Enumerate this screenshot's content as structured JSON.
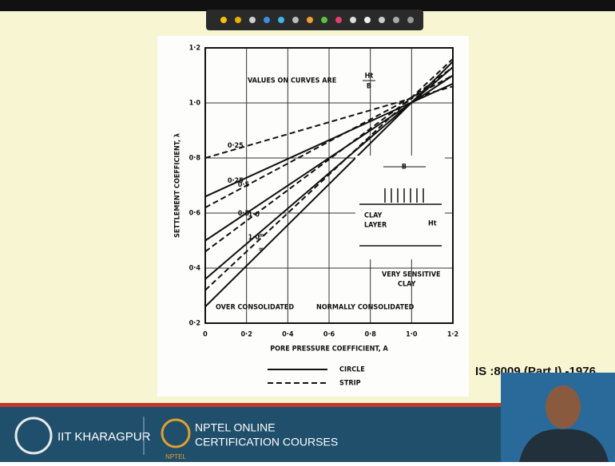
{
  "chart_data": {
    "type": "line",
    "note_text": "VALUES ON CURVES ARE",
    "note_fraction": {
      "numerator": "Ht",
      "denominator": "B"
    },
    "ylabel": "SETTLEMENT COEFFICIENT, λ",
    "xlabel": "PORE PRESSURE COEFFICIENT, A",
    "xlim": [
      0,
      1.2
    ],
    "ylim": [
      0.2,
      1.2
    ],
    "xticks": [
      0,
      {
        "value": 0.2,
        "label": "0·2"
      },
      {
        "value": 0.4,
        "label": "0·4"
      },
      {
        "value": 0.6,
        "label": "0·6"
      },
      {
        "value": 0.8,
        "label": "0·8"
      },
      {
        "value": 1.0,
        "label": "1·0"
      },
      {
        "value": 1.2,
        "label": "1·2"
      }
    ],
    "yticks": [
      {
        "value": 0.2,
        "label": "0·2"
      },
      {
        "value": 0.4,
        "label": "0·4"
      },
      {
        "value": 0.6,
        "label": "0·6"
      },
      {
        "value": 0.8,
        "label": "0·8"
      },
      {
        "value": 1.0,
        "label": "1·0"
      },
      {
        "value": 1.2,
        "label": "1·2"
      }
    ],
    "grid": true,
    "color": "#111111",
    "groups": [
      {
        "name": "CIRCLE",
        "dashed": false,
        "curves": [
          {
            "label": "0·25",
            "x": [
              0,
              1.2
            ],
            "values": [
              0.66,
              1.07
            ]
          },
          {
            "label": "0·5",
            "x": [
              0,
              1.2
            ],
            "values": [
              0.5,
              1.1
            ]
          },
          {
            "label": "1·0",
            "x": [
              0,
              1.2
            ],
            "values": [
              0.36,
              1.13
            ]
          },
          {
            "label": "∞",
            "x": [
              0,
              1.2
            ],
            "values": [
              0.26,
              1.15
            ]
          }
        ]
      },
      {
        "name": "STRIP",
        "dashed": true,
        "curves": [
          {
            "label": "0·25",
            "x": [
              0,
              1.2
            ],
            "values": [
              0.8,
              1.06
            ]
          },
          {
            "label": "0·5",
            "x": [
              0,
              1.2
            ],
            "values": [
              0.62,
              1.1
            ]
          },
          {
            "label": "1·0",
            "x": [
              0,
              1.2
            ],
            "values": [
              0.46,
              1.13
            ]
          },
          {
            "label": "∞",
            "x": [
              0,
              1.2
            ],
            "values": [
              0.32,
              1.16
            ]
          }
        ]
      }
    ],
    "inset": {
      "width_label": "B",
      "layer_label": [
        "CLAY",
        "LAYER"
      ],
      "thickness_label": "Ht"
    },
    "regions": {
      "over": "OVER CONSOLIDATED",
      "normal": "NORMALLY CONSOLIDATED",
      "sensitive": [
        "VERY SENSITIVE",
        "CLAY"
      ]
    }
  },
  "reference": "IS :8009 (Part I) -1976",
  "footer": {
    "institute": "IIT KHARAGPUR",
    "course_line1": "NPTEL ONLINE",
    "course_line2": "CERTIFICATION COURSES",
    "logo_text": "NPTEL"
  }
}
